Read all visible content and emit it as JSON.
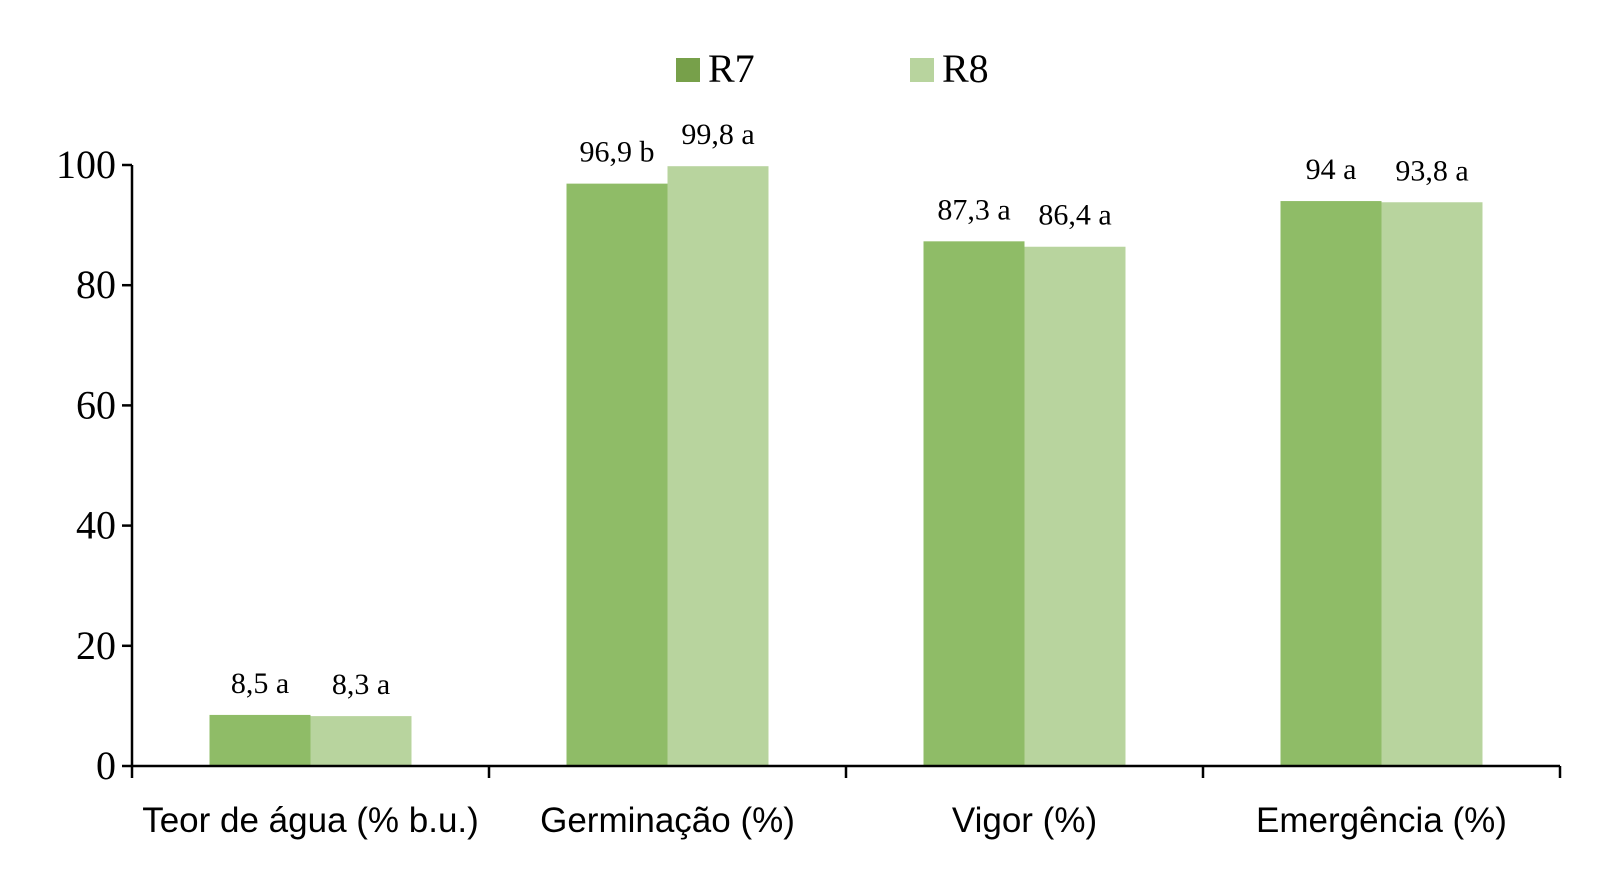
{
  "chart_data": {
    "type": "bar",
    "categories": [
      "Teor de água (% b.u.)",
      "Germinação (%)",
      "Vigor (%)",
      "Emergência (%)"
    ],
    "series": [
      {
        "name": "R7",
        "color": "#8fbc67",
        "legend_color": "#77a04a",
        "values": [
          8.5,
          96.9,
          87.3,
          94
        ],
        "labels": [
          "8,5 a",
          "96,9 b",
          "87,3 a",
          "94 a"
        ]
      },
      {
        "name": "R8",
        "color": "#b8d49e",
        "legend_color": "#b8d49e",
        "values": [
          8.3,
          99.8,
          86.4,
          93.8
        ],
        "labels": [
          "8,3 a",
          "99,8 a",
          "86,4 a",
          "93,8 a"
        ]
      }
    ],
    "ylim": [
      0,
      100
    ],
    "yticks": [
      "0",
      "20",
      "40",
      "60",
      "80",
      "100"
    ],
    "grid": false,
    "legend_position": "top"
  }
}
